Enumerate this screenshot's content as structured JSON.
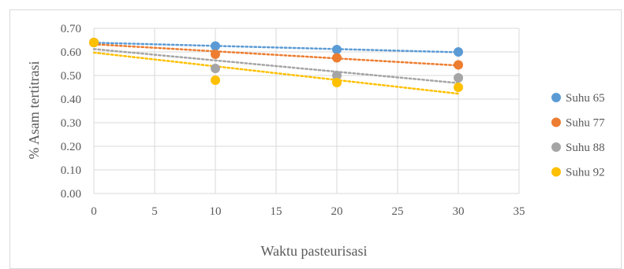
{
  "chart_data": {
    "type": "scatter",
    "title": "",
    "xlabel": "Waktu pasteurisasi",
    "ylabel": "% Asam tertitrasi",
    "xlim": [
      0,
      35
    ],
    "ylim": [
      0,
      0.7
    ],
    "xticks": [
      "0",
      "5",
      "10",
      "15",
      "20",
      "25",
      "30",
      "35"
    ],
    "yticks": [
      "0.00",
      "0.10",
      "0.20",
      "0.30",
      "0.40",
      "0.50",
      "0.60",
      "0.70"
    ],
    "grid": true,
    "legend_position": "right",
    "trendline": "linear, dotted",
    "x": [
      0,
      10,
      20,
      30
    ],
    "series": [
      {
        "name": "Suhu 65",
        "color": "#5b9bd5",
        "values": [
          0.64,
          0.625,
          0.61,
          0.6
        ]
      },
      {
        "name": "Suhu 77",
        "color": "#ed7d31",
        "values": [
          0.64,
          0.59,
          0.575,
          0.545
        ]
      },
      {
        "name": "Suhu 88",
        "color": "#a5a5a5",
        "values": [
          0.64,
          0.53,
          0.5,
          0.49
        ]
      },
      {
        "name": "Suhu 92",
        "color": "#ffc000",
        "values": [
          0.64,
          0.48,
          0.47,
          0.45
        ]
      }
    ]
  }
}
